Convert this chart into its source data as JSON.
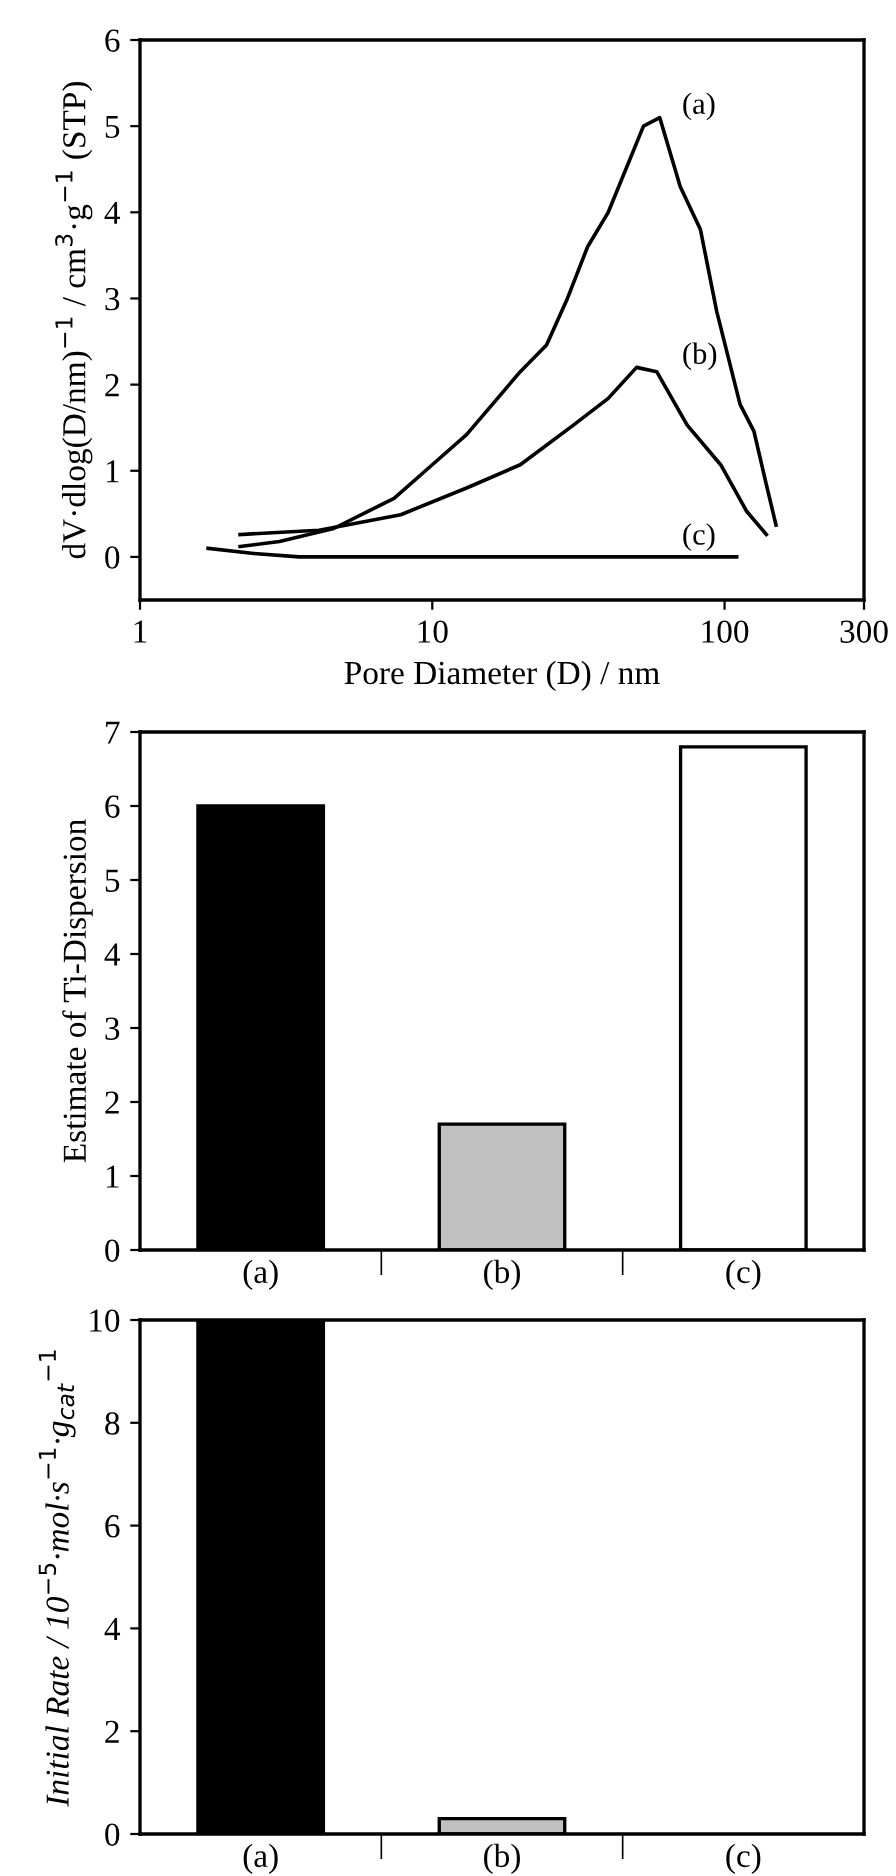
{
  "chart_data": [
    {
      "type": "line",
      "xlabel": "Pore Diameter (D) / nm",
      "ylabel": "dV·dlog(D/nm)$^{−1}$ / cm$^{3}$·g$^{−1}$ (STP)",
      "log": "x",
      "xlim": [
        1,
        300
      ],
      "xticks": [
        1,
        10,
        100,
        300
      ],
      "ylim": [
        -0.5,
        6
      ],
      "yticks": [
        0,
        1,
        2,
        3,
        4,
        5,
        6
      ],
      "grid": false,
      "legend": false,
      "marker": "none",
      "line_style": "solid",
      "series": [
        {
          "color": "#000000",
          "x": [
            2.2,
            3.0,
            4.6,
            7.4,
            10,
            13.1,
            20,
            24.6,
            29,
            34,
            40,
            52.8,
            60,
            70.5,
            82.7,
            94,
            113,
            126,
            139,
            150
          ],
          "values": [
            0.12,
            0.18,
            0.33,
            0.68,
            1.07,
            1.42,
            2.15,
            2.46,
            3.0,
            3.6,
            4.0,
            5.0,
            5.1,
            4.3,
            3.8,
            2.85,
            1.77,
            1.46,
            0.84,
            0.37
          ]
        },
        {
          "color": "#000000",
          "x": [
            2.2,
            4.1,
            7.8,
            13.1,
            20,
            30.4,
            40,
            50,
            58.6,
            74.5,
            97,
            119,
            139
          ],
          "values": [
            0.26,
            0.31,
            0.49,
            0.8,
            1.07,
            1.53,
            1.84,
            2.2,
            2.15,
            1.53,
            1.07,
            0.53,
            0.26
          ]
        },
        {
          "color": "#000000",
          "x": [
            1.71,
            2.45,
            3.5,
            110
          ],
          "values": [
            0.1,
            0.04,
            0,
            0
          ]
        }
      ],
      "annotations": [
        "(a)",
        "(b)",
        "(c)"
      ]
    },
    {
      "type": "bar",
      "ylabel": "Estimate of Ti-Dispersion",
      "categories": [
        "(a)",
        "(b)",
        "(c)"
      ],
      "values": [
        6.0,
        1.7,
        6.8
      ],
      "colors": [
        "#000000",
        "#c0c0c0",
        "#ffffff"
      ],
      "ylim": [
        0,
        7
      ],
      "yticks": [
        0,
        1,
        2,
        3,
        4,
        5,
        6,
        7
      ],
      "grid": false,
      "legend": false
    },
    {
      "type": "bar",
      "ylabel": "Initial Rate / 10$^{−5}$·mol·s$^{−1}$·g$_{cat}$$^{−1}$",
      "categories": [
        "(a)",
        "(b)",
        "(c)"
      ],
      "values": [
        10,
        0.3,
        0
      ],
      "colors": [
        "#000000",
        "#c0c0c0",
        "#ffffff"
      ],
      "ylim": [
        0,
        10
      ],
      "yticks": [
        0,
        2,
        4,
        6,
        8,
        10
      ],
      "grid": false,
      "legend": false
    }
  ]
}
